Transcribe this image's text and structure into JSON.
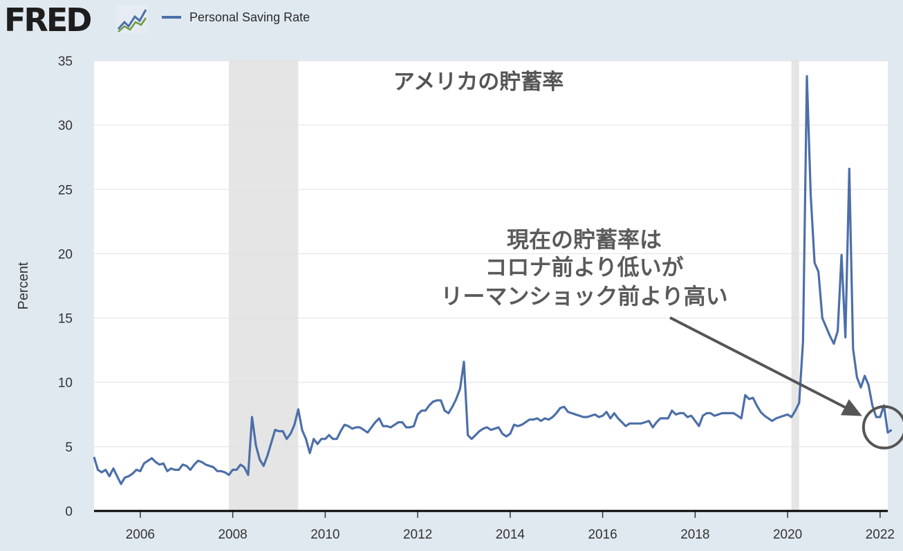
{
  "header": {
    "logo_text": "FRED",
    "logo_icon": "chart-line-icon"
  },
  "colors": {
    "series": "#4c6fa8",
    "recession": "#e5e5e5",
    "background": "#e1e9f0",
    "annotation": "#555555"
  },
  "chart_data": {
    "type": "line",
    "title": "アメリカの貯蓄率",
    "xlabel": "",
    "ylabel": "Percent",
    "xlim": [
      "2005-01",
      "2022-03"
    ],
    "ylim": [
      0,
      35
    ],
    "yticks": [
      0,
      5,
      10,
      15,
      20,
      25,
      30,
      35
    ],
    "xticks": [
      "2006",
      "2008",
      "2010",
      "2012",
      "2014",
      "2016",
      "2018",
      "2020",
      "2022"
    ],
    "grid": true,
    "legend": "top-left",
    "recessions": [
      {
        "start": "2007-12",
        "end": "2009-06"
      },
      {
        "start": "2020-02",
        "end": "2020-04"
      }
    ],
    "annotation": {
      "lines": [
        "現在の貯蓄率は",
        "コロナ前より低いが",
        "リーマンショック前より高い"
      ],
      "target": {
        "x": "2022-01",
        "y": 6.5
      }
    },
    "series": [
      {
        "name": "Personal Saving Rate",
        "points": [
          [
            "2005-01",
            4.2
          ],
          [
            "2005-02",
            3.2
          ],
          [
            "2005-03",
            3.0
          ],
          [
            "2005-04",
            3.2
          ],
          [
            "2005-05",
            2.7
          ],
          [
            "2005-06",
            3.3
          ],
          [
            "2005-07",
            2.7
          ],
          [
            "2005-08",
            2.1
          ],
          [
            "2005-09",
            2.6
          ],
          [
            "2005-10",
            2.7
          ],
          [
            "2005-11",
            2.9
          ],
          [
            "2005-12",
            3.2
          ],
          [
            "2006-01",
            3.1
          ],
          [
            "2006-02",
            3.7
          ],
          [
            "2006-03",
            3.9
          ],
          [
            "2006-04",
            4.1
          ],
          [
            "2006-05",
            3.8
          ],
          [
            "2006-06",
            3.6
          ],
          [
            "2006-07",
            3.7
          ],
          [
            "2006-08",
            3.1
          ],
          [
            "2006-09",
            3.3
          ],
          [
            "2006-10",
            3.2
          ],
          [
            "2006-11",
            3.2
          ],
          [
            "2006-12",
            3.6
          ],
          [
            "2007-01",
            3.5
          ],
          [
            "2007-02",
            3.2
          ],
          [
            "2007-03",
            3.6
          ],
          [
            "2007-04",
            3.9
          ],
          [
            "2007-05",
            3.8
          ],
          [
            "2007-06",
            3.6
          ],
          [
            "2007-07",
            3.5
          ],
          [
            "2007-08",
            3.4
          ],
          [
            "2007-09",
            3.1
          ],
          [
            "2007-10",
            3.1
          ],
          [
            "2007-11",
            3.0
          ],
          [
            "2007-12",
            2.8
          ],
          [
            "2008-01",
            3.2
          ],
          [
            "2008-02",
            3.2
          ],
          [
            "2008-03",
            3.6
          ],
          [
            "2008-04",
            3.4
          ],
          [
            "2008-05",
            2.8
          ],
          [
            "2008-06",
            7.3
          ],
          [
            "2008-07",
            5.1
          ],
          [
            "2008-08",
            4.0
          ],
          [
            "2008-09",
            3.5
          ],
          [
            "2008-10",
            4.3
          ],
          [
            "2008-11",
            5.3
          ],
          [
            "2008-12",
            6.3
          ],
          [
            "2009-01",
            6.2
          ],
          [
            "2009-02",
            6.2
          ],
          [
            "2009-03",
            5.6
          ],
          [
            "2009-04",
            6.0
          ],
          [
            "2009-05",
            6.7
          ],
          [
            "2009-06",
            7.9
          ],
          [
            "2009-07",
            6.3
          ],
          [
            "2009-08",
            5.6
          ],
          [
            "2009-09",
            4.5
          ],
          [
            "2009-10",
            5.6
          ],
          [
            "2009-11",
            5.2
          ],
          [
            "2009-12",
            5.6
          ],
          [
            "2010-01",
            5.6
          ],
          [
            "2010-02",
            5.9
          ],
          [
            "2010-03",
            5.6
          ],
          [
            "2010-04",
            5.6
          ],
          [
            "2010-05",
            6.2
          ],
          [
            "2010-06",
            6.7
          ],
          [
            "2010-07",
            6.6
          ],
          [
            "2010-08",
            6.4
          ],
          [
            "2010-09",
            6.5
          ],
          [
            "2010-10",
            6.5
          ],
          [
            "2010-11",
            6.3
          ],
          [
            "2010-12",
            6.1
          ],
          [
            "2011-01",
            6.5
          ],
          [
            "2011-02",
            6.9
          ],
          [
            "2011-03",
            7.2
          ],
          [
            "2011-04",
            6.6
          ],
          [
            "2011-05",
            6.6
          ],
          [
            "2011-06",
            6.5
          ],
          [
            "2011-07",
            6.7
          ],
          [
            "2011-08",
            6.9
          ],
          [
            "2011-09",
            6.9
          ],
          [
            "2011-10",
            6.5
          ],
          [
            "2011-11",
            6.5
          ],
          [
            "2011-12",
            6.6
          ],
          [
            "2012-01",
            7.5
          ],
          [
            "2012-02",
            7.8
          ],
          [
            "2012-03",
            7.8
          ],
          [
            "2012-04",
            8.2
          ],
          [
            "2012-05",
            8.5
          ],
          [
            "2012-06",
            8.6
          ],
          [
            "2012-07",
            8.6
          ],
          [
            "2012-08",
            7.8
          ],
          [
            "2012-09",
            7.6
          ],
          [
            "2012-10",
            8.1
          ],
          [
            "2012-11",
            8.7
          ],
          [
            "2012-12",
            9.5
          ],
          [
            "2013-01",
            11.6
          ],
          [
            "2013-02",
            5.9
          ],
          [
            "2013-03",
            5.6
          ],
          [
            "2013-04",
            5.9
          ],
          [
            "2013-05",
            6.2
          ],
          [
            "2013-06",
            6.4
          ],
          [
            "2013-07",
            6.5
          ],
          [
            "2013-08",
            6.3
          ],
          [
            "2013-09",
            6.4
          ],
          [
            "2013-10",
            6.5
          ],
          [
            "2013-11",
            6.0
          ],
          [
            "2013-12",
            5.8
          ],
          [
            "2014-01",
            6.0
          ],
          [
            "2014-02",
            6.7
          ],
          [
            "2014-03",
            6.6
          ],
          [
            "2014-04",
            6.7
          ],
          [
            "2014-05",
            6.9
          ],
          [
            "2014-06",
            7.1
          ],
          [
            "2014-07",
            7.1
          ],
          [
            "2014-08",
            7.2
          ],
          [
            "2014-09",
            7.0
          ],
          [
            "2014-10",
            7.2
          ],
          [
            "2014-11",
            7.1
          ],
          [
            "2014-12",
            7.3
          ],
          [
            "2015-01",
            7.6
          ],
          [
            "2015-02",
            8.0
          ],
          [
            "2015-03",
            8.1
          ],
          [
            "2015-04",
            7.7
          ],
          [
            "2015-05",
            7.6
          ],
          [
            "2015-06",
            7.5
          ],
          [
            "2015-07",
            7.4
          ],
          [
            "2015-08",
            7.3
          ],
          [
            "2015-09",
            7.3
          ],
          [
            "2015-10",
            7.4
          ],
          [
            "2015-11",
            7.5
          ],
          [
            "2015-12",
            7.3
          ],
          [
            "2016-01",
            7.4
          ],
          [
            "2016-02",
            7.7
          ],
          [
            "2016-03",
            7.2
          ],
          [
            "2016-04",
            7.6
          ],
          [
            "2016-05",
            7.2
          ],
          [
            "2016-06",
            6.9
          ],
          [
            "2016-07",
            6.6
          ],
          [
            "2016-08",
            6.8
          ],
          [
            "2016-09",
            6.8
          ],
          [
            "2016-10",
            6.8
          ],
          [
            "2016-11",
            6.8
          ],
          [
            "2016-12",
            6.9
          ],
          [
            "2017-01",
            7.0
          ],
          [
            "2017-02",
            6.5
          ],
          [
            "2017-03",
            6.9
          ],
          [
            "2017-04",
            7.2
          ],
          [
            "2017-05",
            7.2
          ],
          [
            "2017-06",
            7.2
          ],
          [
            "2017-07",
            7.8
          ],
          [
            "2017-08",
            7.5
          ],
          [
            "2017-09",
            7.6
          ],
          [
            "2017-10",
            7.6
          ],
          [
            "2017-11",
            7.3
          ],
          [
            "2017-12",
            7.4
          ],
          [
            "2018-01",
            7.0
          ],
          [
            "2018-02",
            6.6
          ],
          [
            "2018-03",
            7.4
          ],
          [
            "2018-04",
            7.6
          ],
          [
            "2018-05",
            7.6
          ],
          [
            "2018-06",
            7.4
          ],
          [
            "2018-07",
            7.5
          ],
          [
            "2018-08",
            7.6
          ],
          [
            "2018-09",
            7.6
          ],
          [
            "2018-10",
            7.6
          ],
          [
            "2018-11",
            7.6
          ],
          [
            "2018-12",
            7.4
          ],
          [
            "2019-01",
            7.2
          ],
          [
            "2019-02",
            9.0
          ],
          [
            "2019-03",
            8.7
          ],
          [
            "2019-04",
            8.8
          ],
          [
            "2019-05",
            8.2
          ],
          [
            "2019-06",
            7.7
          ],
          [
            "2019-07",
            7.4
          ],
          [
            "2019-08",
            7.2
          ],
          [
            "2019-09",
            7.0
          ],
          [
            "2019-10",
            7.2
          ],
          [
            "2019-11",
            7.3
          ],
          [
            "2019-12",
            7.4
          ],
          [
            "2020-01",
            7.5
          ],
          [
            "2020-02",
            7.3
          ],
          [
            "2020-03",
            7.8
          ],
          [
            "2020-04",
            8.4
          ],
          [
            "2020-05",
            13.2
          ],
          [
            "2020-06",
            33.8
          ],
          [
            "2020-07",
            24.6
          ],
          [
            "2020-08",
            19.3
          ],
          [
            "2020-09",
            18.6
          ],
          [
            "2020-10",
            15.0
          ],
          [
            "2020-11",
            14.3
          ],
          [
            "2020-12",
            13.6
          ],
          [
            "2021-01",
            13.0
          ],
          [
            "2021-02",
            14.0
          ],
          [
            "2021-03",
            19.9
          ],
          [
            "2021-04",
            13.5
          ],
          [
            "2021-05",
            26.6
          ],
          [
            "2021-06",
            12.6
          ],
          [
            "2021-07",
            10.4
          ],
          [
            "2021-08",
            9.6
          ],
          [
            "2021-09",
            10.5
          ],
          [
            "2021-10",
            9.8
          ],
          [
            "2021-11",
            8.2
          ],
          [
            "2021-12",
            7.3
          ],
          [
            "2022-01",
            7.3
          ],
          [
            "2022-02",
            8.2
          ],
          [
            "2022-03",
            6.1
          ],
          [
            "2022-04",
            6.3
          ]
        ]
      }
    ]
  }
}
